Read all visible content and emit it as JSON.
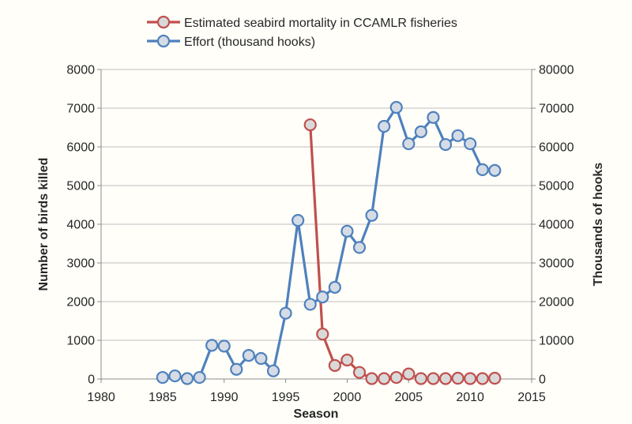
{
  "chart_data": {
    "type": "line",
    "title": "",
    "xlabel": "Season",
    "ylabel_left": "Number of birds killed",
    "ylabel_right": "Thousands of hooks",
    "grid": true,
    "legend_position": "top-center",
    "x_axis": {
      "min": 1980,
      "max": 2015,
      "tick_step": 5,
      "ticks": [
        1980,
        1985,
        1990,
        1995,
        2000,
        2005,
        2010,
        2015
      ]
    },
    "left_axis": {
      "min": 0,
      "max": 8000,
      "tick_step": 1000,
      "ticks": [
        0,
        1000,
        2000,
        3000,
        4000,
        5000,
        6000,
        7000,
        8000
      ]
    },
    "right_axis": {
      "min": 0,
      "max": 80000,
      "tick_step": 10000,
      "ticks": [
        0,
        10000,
        20000,
        30000,
        40000,
        50000,
        60000,
        70000,
        80000
      ]
    },
    "series": [
      {
        "id": "mortality",
        "name": "Estimated seabird mortality in CCAMLR fisheries",
        "axis": "left",
        "color": "#c0504d",
        "marker_fill": "#d9d9d9",
        "x": [
          1997,
          1998,
          1999,
          2000,
          2001,
          2002,
          2003,
          2004,
          2005,
          2006,
          2007,
          2008,
          2009,
          2010,
          2011,
          2012
        ],
        "values": [
          6570,
          1160,
          350,
          490,
          170,
          10,
          10,
          40,
          130,
          10,
          10,
          10,
          20,
          10,
          10,
          20
        ]
      },
      {
        "id": "effort",
        "name": "Effort (thousand hooks)",
        "axis": "right",
        "color": "#4f81bd",
        "marker_fill": "#d6dce5",
        "x": [
          1985,
          1986,
          1987,
          1988,
          1989,
          1990,
          1991,
          1992,
          1993,
          1994,
          1995,
          1996,
          1997,
          1998,
          1999,
          2000,
          2001,
          2002,
          2003,
          2004,
          2005,
          2006,
          2007,
          2008,
          2009,
          2010,
          2011,
          2012
        ],
        "values": [
          400,
          800,
          100,
          400,
          8700,
          8500,
          2500,
          6100,
          5300,
          2100,
          17000,
          41000,
          19300,
          21200,
          23700,
          38200,
          34000,
          42300,
          65300,
          70200,
          60800,
          63900,
          67600,
          60600,
          62900,
          60800,
          54100,
          53900
        ]
      }
    ]
  }
}
